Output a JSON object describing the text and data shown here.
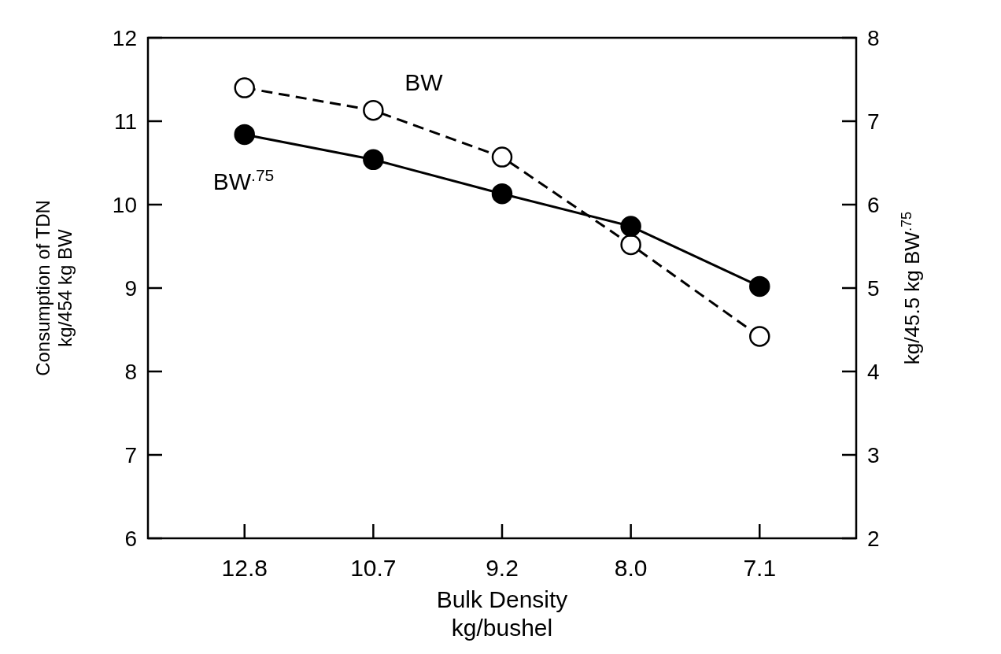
{
  "chart_data": {
    "type": "line",
    "xlabel": "Bulk Density\nkg/bushel",
    "ylabel": "Consumption of TDN\nkg/454 kg BW",
    "y2label": "kg/45.5 kg BW$^{.75}$",
    "categories": [
      "12.8",
      "10.7",
      "9.2",
      "8.0",
      "7.1"
    ],
    "ylim": [
      6,
      12
    ],
    "yticks": [
      6,
      7,
      8,
      9,
      10,
      11,
      12
    ],
    "y2lim": [
      2,
      8
    ],
    "y2ticks": [
      2,
      3,
      4,
      5,
      6,
      7,
      8
    ],
    "marker": "circle",
    "series": [
      {
        "name": "BW",
        "color": "#000000",
        "line_style": "dashed",
        "values": [
          11.4,
          11.13,
          10.57,
          9.52,
          8.42
        ]
      },
      {
        "name": "BW$^{.75}$",
        "color": "#000000",
        "line_style": "solid",
        "axis": "y2",
        "values": [
          6.84,
          6.54,
          6.13,
          5.74,
          5.02
        ]
      }
    ]
  }
}
